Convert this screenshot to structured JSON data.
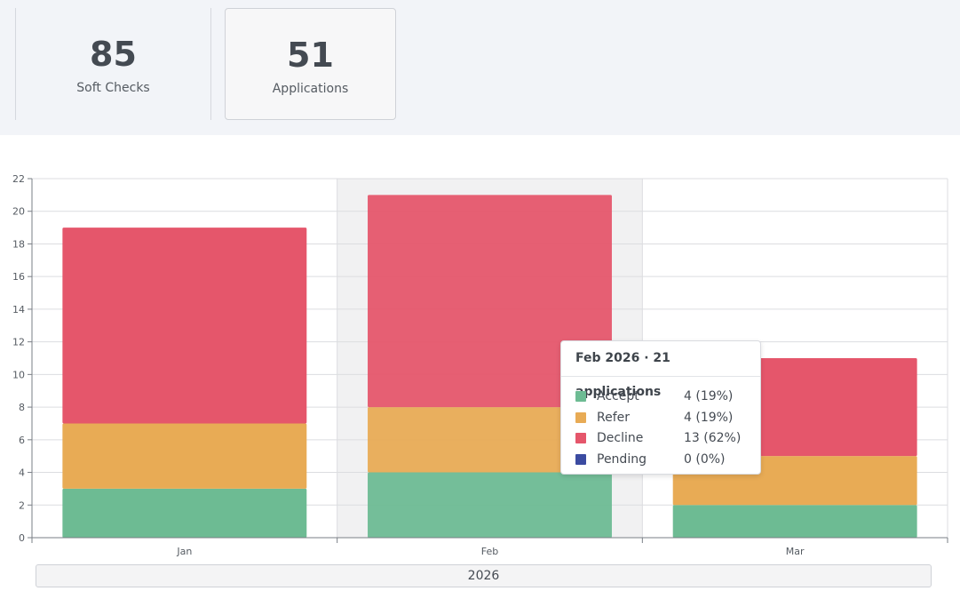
{
  "stats": {
    "soft_checks": {
      "value": "85",
      "label": "Soft Checks"
    },
    "applications": {
      "value": "51",
      "label": "Applications"
    }
  },
  "tooltip": {
    "title": "Feb 2026 · 21 applications",
    "rows": [
      {
        "name": "Accept",
        "value": "4 (19%)",
        "color": "#6dbb93"
      },
      {
        "name": "Refer",
        "value": "4 (19%)",
        "color": "#e8ab55"
      },
      {
        "name": "Decline",
        "value": "13 (62%)",
        "color": "#e5566b"
      },
      {
        "name": "Pending",
        "value": "0 (0%)",
        "color": "#3b4ba1"
      }
    ]
  },
  "year_label": "2026",
  "chart_data": {
    "type": "bar",
    "stacked": true,
    "categories": [
      "Jan",
      "Feb",
      "Mar"
    ],
    "highlighted_category": "Feb",
    "series": [
      {
        "name": "Accept",
        "values": [
          3,
          4,
          2
        ],
        "color": "#6dbb93"
      },
      {
        "name": "Refer",
        "values": [
          4,
          4,
          3
        ],
        "color": "#e8ab55"
      },
      {
        "name": "Decline",
        "values": [
          12,
          13,
          6
        ],
        "color": "#e5566b"
      },
      {
        "name": "Pending",
        "values": [
          0,
          0,
          0
        ],
        "color": "#3b4ba1"
      }
    ],
    "ylim": [
      0,
      22
    ],
    "yticks": [
      0,
      2,
      4,
      6,
      8,
      10,
      12,
      14,
      16,
      18,
      20,
      22
    ],
    "grid": true
  }
}
